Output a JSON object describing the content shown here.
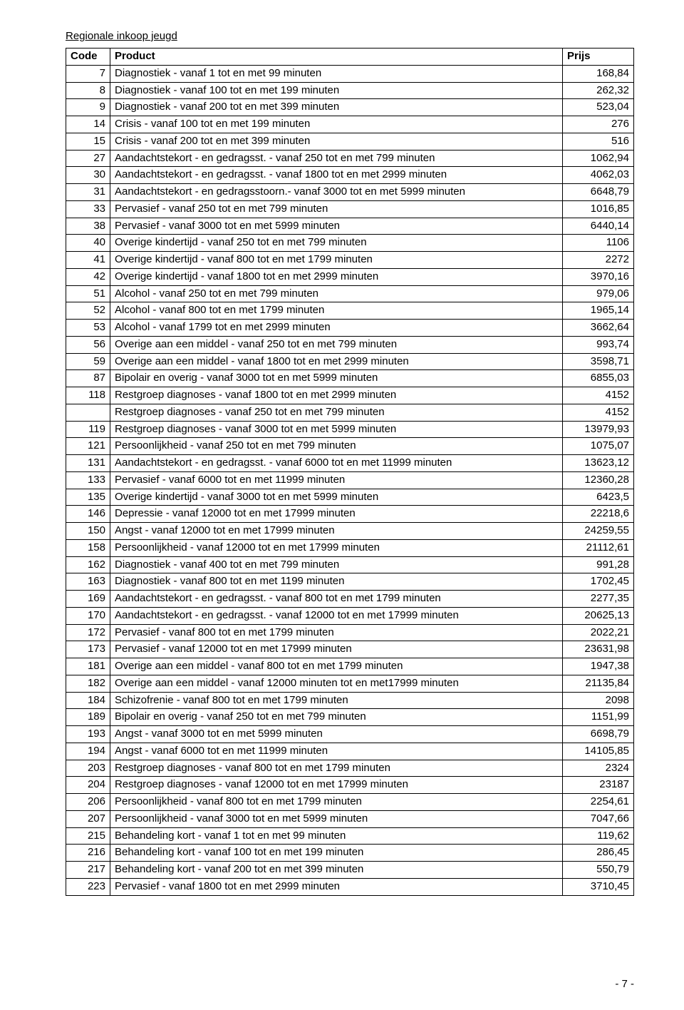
{
  "doc_title": "Regionale inkoop jeugd",
  "footer": "- 7 -",
  "table": {
    "columns": [
      "Code",
      "Product",
      "Prijs"
    ],
    "col_align": [
      "right",
      "left",
      "right"
    ],
    "border_color": "#000000",
    "font_size_pt": 11,
    "rows": [
      [
        "7",
        "Diagnostiek - vanaf 1 tot en met 99 minuten",
        "168,84"
      ],
      [
        "8",
        "Diagnostiek - vanaf 100 tot en met 199 minuten",
        "262,32"
      ],
      [
        "9",
        "Diagnostiek - vanaf 200 tot en met 399 minuten",
        "523,04"
      ],
      [
        "14",
        "Crisis - vanaf 100 tot en met 199 minuten",
        "276"
      ],
      [
        "15",
        "Crisis - vanaf 200 tot en met 399 minuten",
        "516"
      ],
      [
        "27",
        "Aandachtstekort - en gedragsst. - vanaf 250 tot en met 799 minuten",
        "1062,94"
      ],
      [
        "30",
        "Aandachtstekort - en gedragsst. - vanaf 1800 tot en met 2999 minuten",
        "4062,03"
      ],
      [
        "31",
        "Aandachtstekort - en gedragsstoorn.- vanaf 3000 tot en met 5999 minuten",
        "6648,79"
      ],
      [
        "33",
        "Pervasief - vanaf 250 tot en met 799 minuten",
        "1016,85"
      ],
      [
        "38",
        "Pervasief - vanaf 3000 tot en met 5999 minuten",
        "6440,14"
      ],
      [
        "40",
        "Overige kindertijd - vanaf 250 tot en met 799 minuten",
        "1106"
      ],
      [
        "41",
        "Overige kindertijd - vanaf 800 tot en met 1799 minuten",
        "2272"
      ],
      [
        "42",
        "Overige kindertijd - vanaf 1800 tot en met 2999 minuten",
        "3970,16"
      ],
      [
        "51",
        "Alcohol - vanaf 250 tot en met 799 minuten",
        "979,06"
      ],
      [
        "52",
        "Alcohol - vanaf 800 tot en met 1799 minuten",
        "1965,14"
      ],
      [
        "53",
        "Alcohol - vanaf 1799 tot en met 2999 minuten",
        "3662,64"
      ],
      [
        "56",
        "Overige aan een middel - vanaf 250 tot en met 799 minuten",
        "993,74"
      ],
      [
        "59",
        "Overige aan een middel - vanaf 1800 tot en met 2999 minuten",
        "3598,71"
      ],
      [
        "87",
        "Bipolair en overig - vanaf 3000 tot en met 5999 minuten",
        "6855,03"
      ],
      [
        "118",
        "Restgroep diagnoses - vanaf 1800 tot en met 2999 minuten",
        "4152"
      ],
      [
        "",
        "Restgroep diagnoses - vanaf 250 tot en met 799 minuten",
        "4152"
      ],
      [
        "119",
        "Restgroep diagnoses - vanaf 3000 tot en met 5999 minuten",
        "13979,93"
      ],
      [
        "121",
        "Persoonlijkheid - vanaf 250 tot en met 799 minuten",
        "1075,07"
      ],
      [
        "131",
        "Aandachtstekort - en gedragsst. - vanaf 6000 tot en met 11999 minuten",
        "13623,12"
      ],
      [
        "133",
        "Pervasief - vanaf 6000 tot en met 11999 minuten",
        "12360,28"
      ],
      [
        "135",
        "Overige kindertijd - vanaf 3000 tot en met 5999 minuten",
        "6423,5"
      ],
      [
        "146",
        "Depressie - vanaf 12000 tot en met 17999 minuten",
        "22218,6"
      ],
      [
        "150",
        "Angst - vanaf 12000 tot en met 17999 minuten",
        "24259,55"
      ],
      [
        "158",
        "Persoonlijkheid - vanaf 12000 tot en met 17999 minuten",
        "21112,61"
      ],
      [
        "162",
        "Diagnostiek - vanaf 400 tot en met 799 minuten",
        "991,28"
      ],
      [
        "163",
        "Diagnostiek - vanaf 800 tot en met 1199 minuten",
        "1702,45"
      ],
      [
        "169",
        "Aandachtstekort - en gedragsst. - vanaf 800 tot en met 1799 minuten",
        "2277,35"
      ],
      [
        "170",
        "Aandachtstekort - en gedragsst. - vanaf 12000 tot en met 17999 minuten",
        "20625,13"
      ],
      [
        "172",
        "Pervasief - vanaf 800 tot en met 1799 minuten",
        "2022,21"
      ],
      [
        "173",
        "Pervasief - vanaf 12000 tot en met 17999 minuten",
        "23631,98"
      ],
      [
        "181",
        "Overige aan een middel - vanaf 800 tot en met 1799 minuten",
        "1947,38"
      ],
      [
        "182",
        "Overige aan een middel - vanaf 12000 minuten tot en met17999 minuten",
        "21135,84"
      ],
      [
        "184",
        "Schizofrenie - vanaf 800 tot en met 1799 minuten",
        "2098"
      ],
      [
        "189",
        "Bipolair en overig - vanaf 250 tot en met 799 minuten",
        "1151,99"
      ],
      [
        "193",
        "Angst - vanaf 3000 tot en met 5999 minuten",
        "6698,79"
      ],
      [
        "194",
        "Angst - vanaf 6000 tot en met 11999 minuten",
        "14105,85"
      ],
      [
        "203",
        "Restgroep diagnoses - vanaf 800 tot en met 1799 minuten",
        "2324"
      ],
      [
        "204",
        "Restgroep diagnoses - vanaf 12000 tot en met 17999 minuten",
        "23187"
      ],
      [
        "206",
        "Persoonlijkheid - vanaf 800 tot en met 1799 minuten",
        "2254,61"
      ],
      [
        "207",
        "Persoonlijkheid - vanaf 3000 tot en met 5999 minuten",
        "7047,66"
      ],
      [
        "215",
        "Behandeling kort - vanaf 1 tot en met 99 minuten",
        "119,62"
      ],
      [
        "216",
        "Behandeling kort - vanaf 100 tot en met 199 minuten",
        "286,45"
      ],
      [
        "217",
        "Behandeling kort - vanaf 200 tot en met 399 minuten",
        "550,79"
      ],
      [
        "223",
        "Pervasief - vanaf 1800 tot en met 2999 minuten",
        "3710,45"
      ]
    ]
  }
}
